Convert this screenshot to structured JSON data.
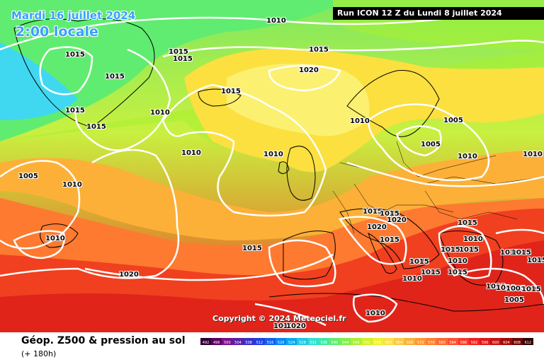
{
  "title": {
    "date": "Mardi 16 juillet 2024",
    "time": "2:00 locale"
  },
  "run": "Run ICON 12 Z du Lundi 8 juillet 2024",
  "copyright": "Copyright © 2024 Meteociel.fr",
  "footer": {
    "title": "Géop. Z500 & pression au sol",
    "subtitle": "(+ 180h)"
  },
  "isobar_labels": [
    "1010",
    "1015",
    "1015",
    "1015",
    "1015",
    "1015",
    "1015",
    "1015",
    "1020",
    "1015",
    "1010",
    "1010",
    "1010",
    "1010",
    "1005",
    "1005",
    "1010",
    "1010",
    "1005",
    "1010",
    "1010",
    "1015",
    "1015",
    "1020",
    "1020",
    "1015",
    "1015",
    "1010",
    "1015",
    "1015",
    "1015",
    "1010",
    "1015",
    "1020",
    "1010",
    "1015",
    "1015",
    "1010",
    "1010",
    "1015",
    "1015",
    "1010",
    "1010",
    "1005",
    "1005",
    "1015",
    "1010",
    "1020"
  ],
  "scale": {
    "labels": [
      "492",
      "496",
      "500",
      "504",
      "508",
      "512",
      "516",
      "520",
      "524",
      "528",
      "532",
      "536",
      "540",
      "544",
      "548",
      "552",
      "556",
      "560",
      "564",
      "568",
      "572",
      "576",
      "580",
      "584",
      "588",
      "592",
      "596",
      "600",
      "604",
      "608",
      "612"
    ],
    "colors": [
      "#2e0033",
      "#5a005e",
      "#7a0f8a",
      "#5a1fa8",
      "#3a2fc8",
      "#1f3fe0",
      "#1060f0",
      "#0a85f5",
      "#08a8f0",
      "#20c8e8",
      "#30e0d0",
      "#40e8a0",
      "#60ec70",
      "#80f048",
      "#a8f030",
      "#d0f028",
      "#f0f030",
      "#fbe040",
      "#fcc840",
      "#fdb038",
      "#fd9830",
      "#fd8030",
      "#fd6830",
      "#fc5030",
      "#f83828",
      "#f02020",
      "#e01818",
      "#c81010",
      "#a00808",
      "#700404",
      "#300000"
    ]
  }
}
